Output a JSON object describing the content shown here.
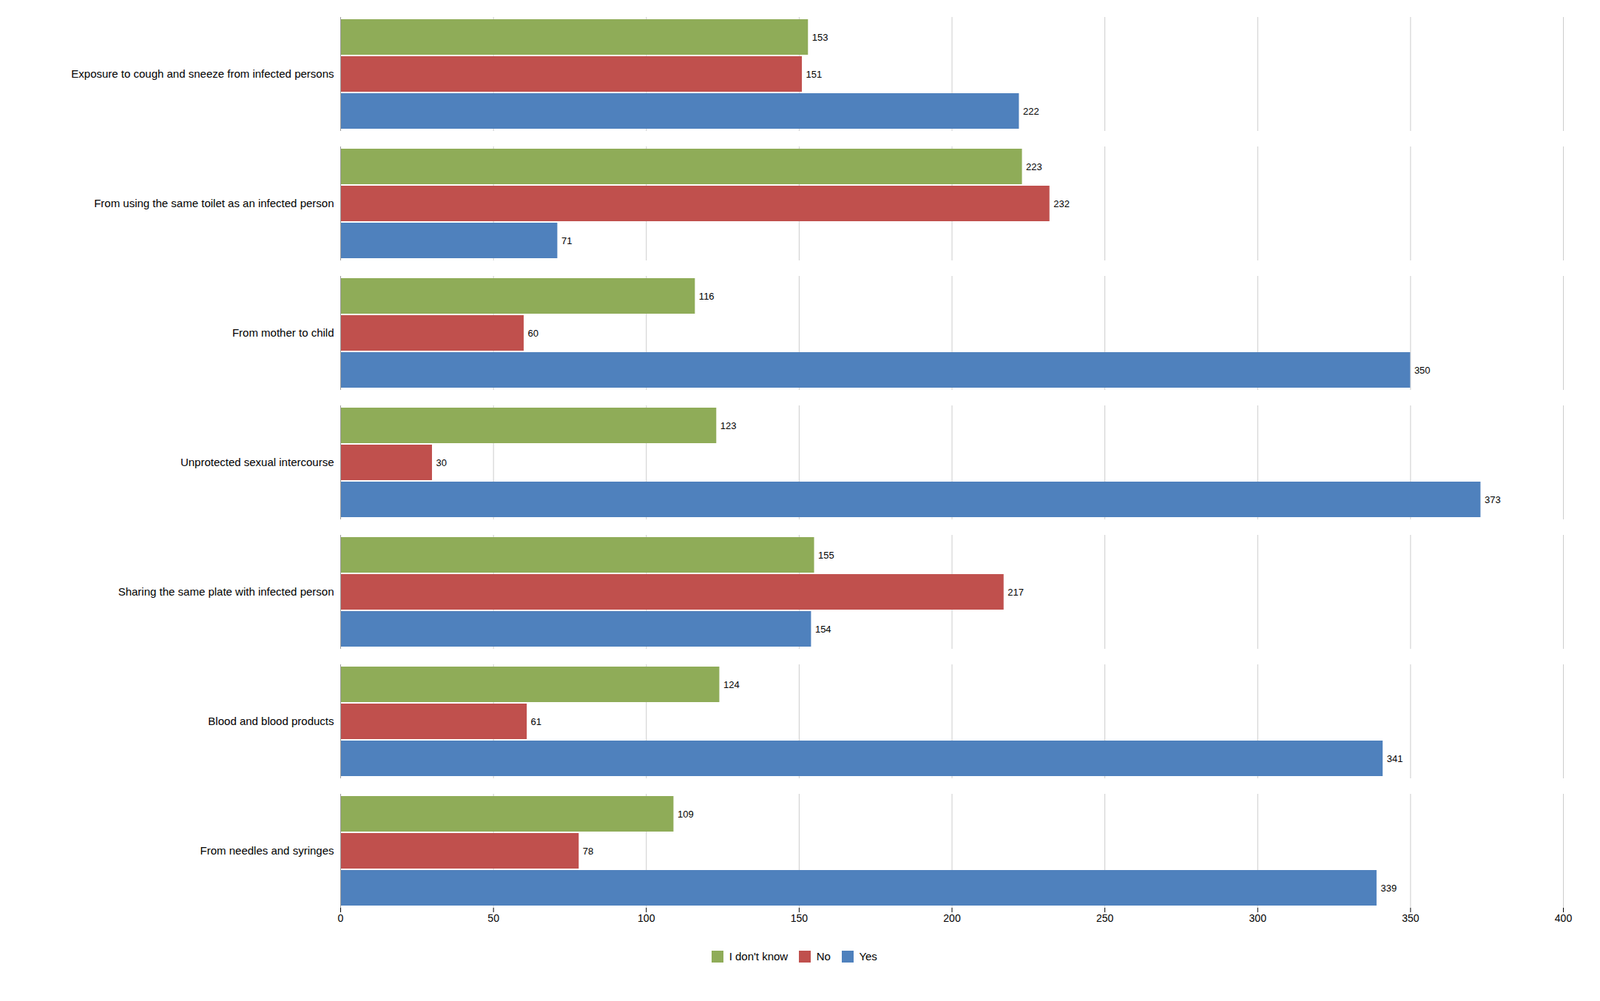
{
  "chart_data": {
    "type": "bar",
    "orientation": "horizontal",
    "categories": [
      "Exposure to cough and sneeze from infected persons",
      "From using the same toilet as an infected person",
      "From mother to child",
      "Unprotected sexual intercourse",
      "Sharing the same plate with infected person",
      "Blood and blood products",
      "From needles and syringes"
    ],
    "series": [
      {
        "name": "I don't know",
        "color": "#8fac58",
        "values": [
          153,
          223,
          116,
          123,
          155,
          124,
          109
        ]
      },
      {
        "name": "No",
        "color": "#c0504d",
        "values": [
          151,
          232,
          60,
          30,
          217,
          61,
          78
        ]
      },
      {
        "name": "Yes",
        "color": "#4f81bd",
        "values": [
          222,
          71,
          350,
          373,
          154,
          341,
          339
        ]
      }
    ],
    "xlim": [
      0,
      400
    ],
    "xticks": [
      0,
      50,
      100,
      150,
      200,
      250,
      300,
      350,
      400
    ],
    "grid": true,
    "data_labels": true,
    "legend": "bottom"
  }
}
